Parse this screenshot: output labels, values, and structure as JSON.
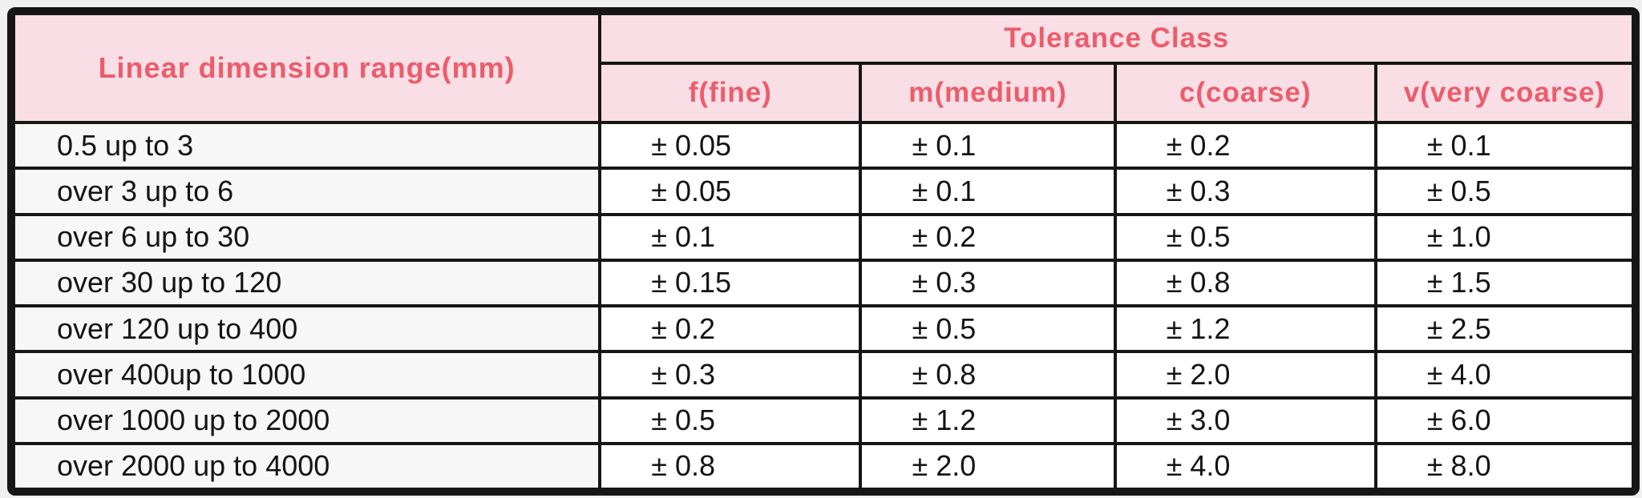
{
  "colors": {
    "header_background": "#f9dfe5",
    "header_text": "#ed5c6c",
    "border": "#161616",
    "range_column_background": "#f7f7f7",
    "value_cell_background": "#ffffff",
    "page_background": "#f0f0f0"
  },
  "table": {
    "header": {
      "range_column": "Linear dimension range(mm)",
      "group": "Tolerance Class",
      "classes": [
        "f(fine)",
        "m(medium)",
        "c(coarse)",
        "v(very coarse)"
      ]
    },
    "rows": [
      {
        "range": "0.5 up to 3",
        "values": [
          "± 0.05",
          "± 0.1",
          "± 0.2",
          "± 0.1"
        ]
      },
      {
        "range": "over 3 up to 6",
        "values": [
          "± 0.05",
          "± 0.1",
          "± 0.3",
          "± 0.5"
        ]
      },
      {
        "range": "over 6 up to 30",
        "values": [
          "± 0.1",
          "± 0.2",
          "± 0.5",
          "± 1.0"
        ]
      },
      {
        "range": "over 30 up to 120",
        "values": [
          "± 0.15",
          "± 0.3",
          "± 0.8",
          "± 1.5"
        ]
      },
      {
        "range": "over 120 up to 400",
        "values": [
          "± 0.2",
          "± 0.5",
          "± 1.2",
          "± 2.5"
        ]
      },
      {
        "range": "over 400up to 1000",
        "values": [
          "± 0.3",
          "± 0.8",
          "± 2.0",
          "± 4.0"
        ]
      },
      {
        "range": "over 1000 up to 2000",
        "values": [
          "± 0.5",
          "± 1.2",
          "± 3.0",
          "± 6.0"
        ]
      },
      {
        "range": "over 2000 up to 4000",
        "values": [
          "± 0.8",
          "± 2.0",
          "± 4.0",
          "± 8.0"
        ]
      }
    ]
  }
}
